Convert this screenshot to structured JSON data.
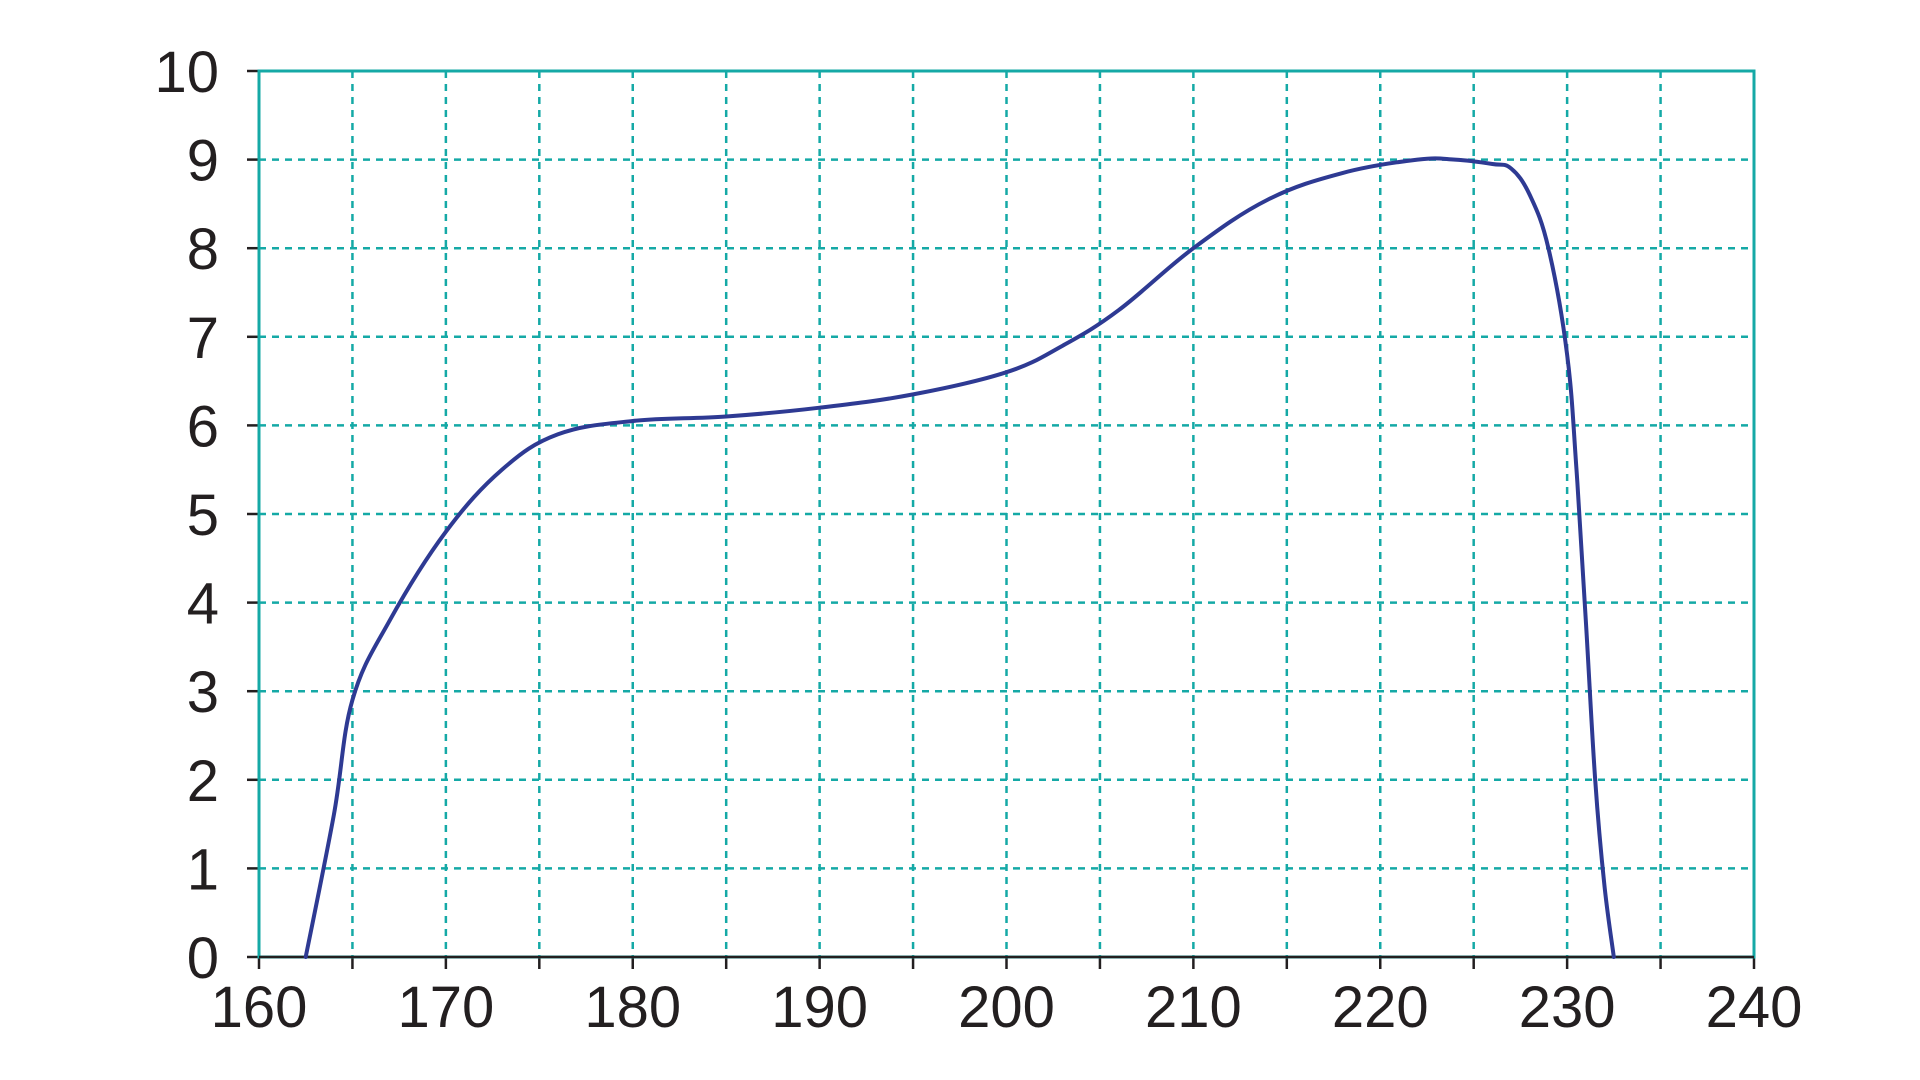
{
  "chart_data": {
    "type": "line",
    "title": "",
    "xlabel": "",
    "ylabel": "",
    "xlim": [
      160,
      240
    ],
    "ylim": [
      0,
      10
    ],
    "x_ticks": [
      160,
      165,
      170,
      175,
      180,
      185,
      190,
      195,
      200,
      205,
      210,
      215,
      220,
      225,
      230,
      235,
      240
    ],
    "x_tick_labels": [
      "160",
      "170",
      "180",
      "190",
      "200",
      "210",
      "220",
      "230",
      "240"
    ],
    "x_tick_label_values": [
      160,
      170,
      180,
      190,
      200,
      210,
      220,
      230,
      240
    ],
    "y_ticks": [
      0,
      1,
      2,
      3,
      4,
      5,
      6,
      7,
      8,
      9,
      10
    ],
    "y_tick_labels": [
      "0",
      "1",
      "2",
      "3",
      "4",
      "5",
      "6",
      "7",
      "8",
      "9",
      "10"
    ],
    "grid": true,
    "legend": "none",
    "colors": {
      "grid": "#15a9a6",
      "line": "#2e3a93",
      "text": "#231f20"
    },
    "series": [
      {
        "x": [
          162.5,
          164,
          165,
          167,
          170,
          173,
          176,
          180,
          185,
          190,
          195,
          200,
          203,
          206,
          210,
          214,
          218,
          222,
          224,
          226,
          227,
          228,
          229,
          230,
          230.5,
          231,
          231.5,
          232,
          232.5
        ],
        "y": [
          0,
          1.6,
          2.9,
          3.8,
          4.8,
          5.5,
          5.9,
          6.05,
          6.1,
          6.2,
          6.35,
          6.6,
          6.9,
          7.3,
          8.0,
          8.55,
          8.85,
          9.0,
          9.0,
          8.95,
          8.9,
          8.6,
          8.0,
          6.8,
          5.5,
          3.8,
          2.0,
          0.8,
          0
        ]
      }
    ]
  }
}
